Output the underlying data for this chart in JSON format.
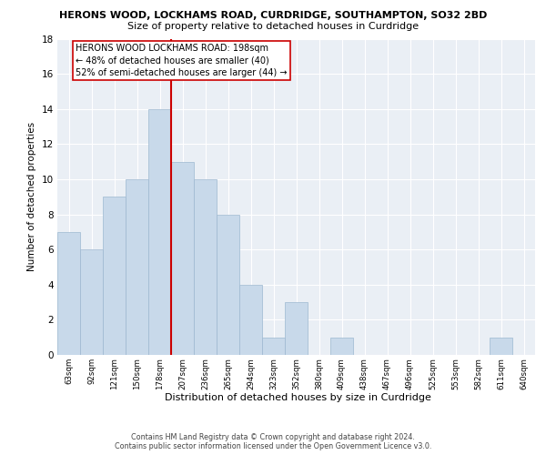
{
  "title1": "HERONS WOOD, LOCKHAMS ROAD, CURDRIDGE, SOUTHAMPTON, SO32 2BD",
  "title2": "Size of property relative to detached houses in Curdridge",
  "xlabel": "Distribution of detached houses by size in Curdridge",
  "ylabel": "Number of detached properties",
  "bar_color": "#c8d9ea",
  "bar_edge_color": "#9db8d0",
  "categories": [
    "63sqm",
    "92sqm",
    "121sqm",
    "150sqm",
    "178sqm",
    "207sqm",
    "236sqm",
    "265sqm",
    "294sqm",
    "323sqm",
    "352sqm",
    "380sqm",
    "409sqm",
    "438sqm",
    "467sqm",
    "496sqm",
    "525sqm",
    "553sqm",
    "582sqm",
    "611sqm",
    "640sqm"
  ],
  "values": [
    7,
    6,
    9,
    10,
    14,
    11,
    10,
    8,
    4,
    1,
    3,
    0,
    1,
    0,
    0,
    0,
    0,
    0,
    0,
    1,
    0
  ],
  "vline_x": 4.5,
  "vline_color": "#cc0000",
  "annotation_title": "HERONS WOOD LOCKHAMS ROAD: 198sqm",
  "annotation_line1": "← 48% of detached houses are smaller (40)",
  "annotation_line2": "52% of semi-detached houses are larger (44) →",
  "annotation_box_facecolor": "#ffffff",
  "annotation_box_edgecolor": "#cc0000",
  "ylim": [
    0,
    18
  ],
  "yticks": [
    0,
    2,
    4,
    6,
    8,
    10,
    12,
    14,
    16,
    18
  ],
  "footer1": "Contains HM Land Registry data © Crown copyright and database right 2024.",
  "footer2": "Contains public sector information licensed under the Open Government Licence v3.0.",
  "bg_color": "#eaeff5",
  "fig_bg": "#ffffff",
  "grid_color": "#ffffff",
  "title1_fontsize": 8.0,
  "title2_fontsize": 8.0,
  "ylabel_fontsize": 7.5,
  "xlabel_fontsize": 8.0,
  "ytick_fontsize": 7.5,
  "xtick_fontsize": 6.2,
  "footer_fontsize": 5.8,
  "ann_fontsize": 7.0
}
